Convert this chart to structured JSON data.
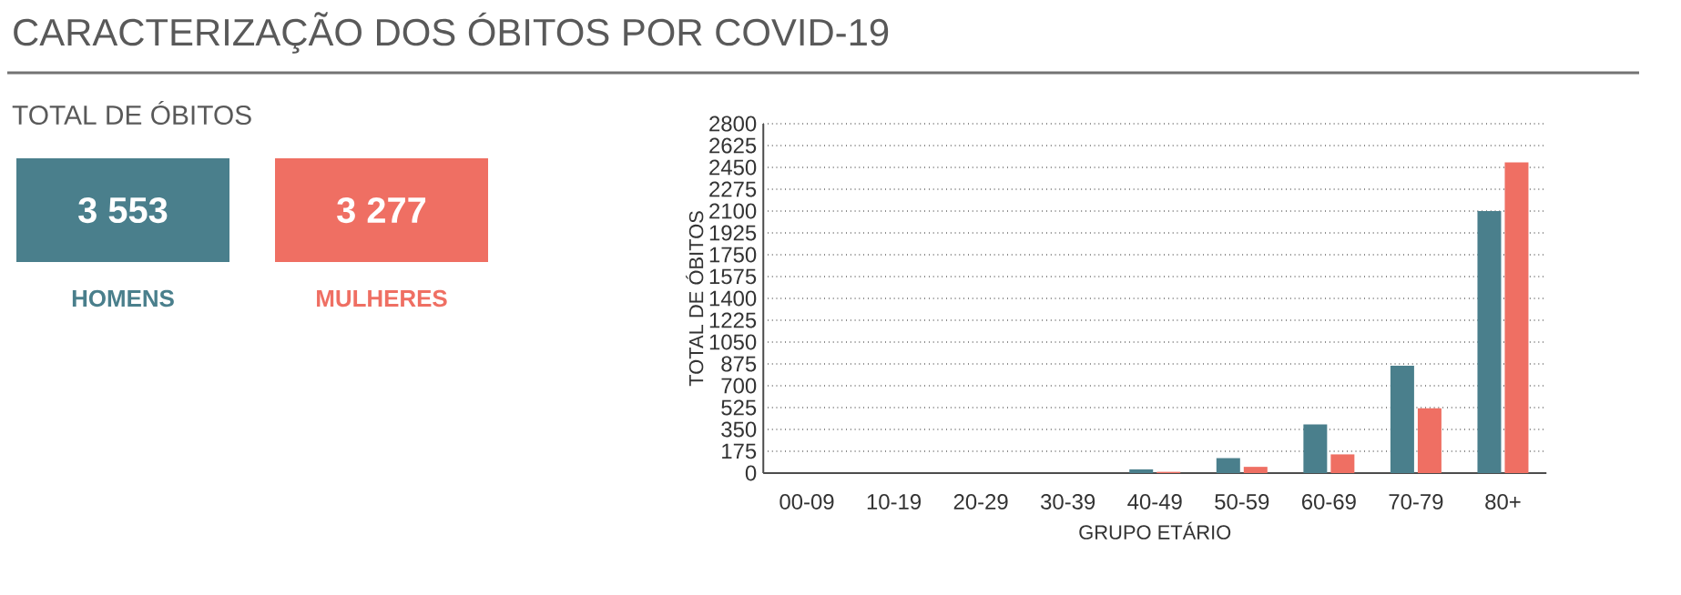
{
  "chart_data": [
    {
      "type": "other",
      "title": "CARACTERIZAÇÃO DOS ÓBITOS POR COVID-19",
      "subtitle": "TOTAL DE ÓBITOS",
      "categories": [
        "HOMENS",
        "MULHERES"
      ],
      "value_labels": [
        "3 553",
        "3 277"
      ],
      "colors": [
        "#4a7f8c",
        "#ef6f63"
      ]
    },
    {
      "type": "bar",
      "xlabel": "GRUPO ETÁRIO",
      "ylabel": "TOTAL DE ÓBITOS",
      "categories": [
        "00-09",
        "10-19",
        "20-29",
        "30-39",
        "40-49",
        "50-59",
        "60-69",
        "70-79",
        "80+"
      ],
      "series": [
        {
          "color": "#4a7f8c",
          "values": [
            0,
            0,
            0,
            0,
            30,
            120,
            390,
            860,
            2100
          ]
        },
        {
          "color": "#ef6f63",
          "values": [
            0,
            0,
            0,
            0,
            10,
            50,
            150,
            520,
            2490
          ]
        }
      ],
      "ylim": [
        0,
        2800
      ],
      "yticks": [
        0,
        175,
        350,
        525,
        700,
        875,
        1050,
        1225,
        1400,
        1575,
        1750,
        1925,
        2100,
        2275,
        2450,
        2625,
        2800
      ],
      "grid": "y"
    }
  ]
}
